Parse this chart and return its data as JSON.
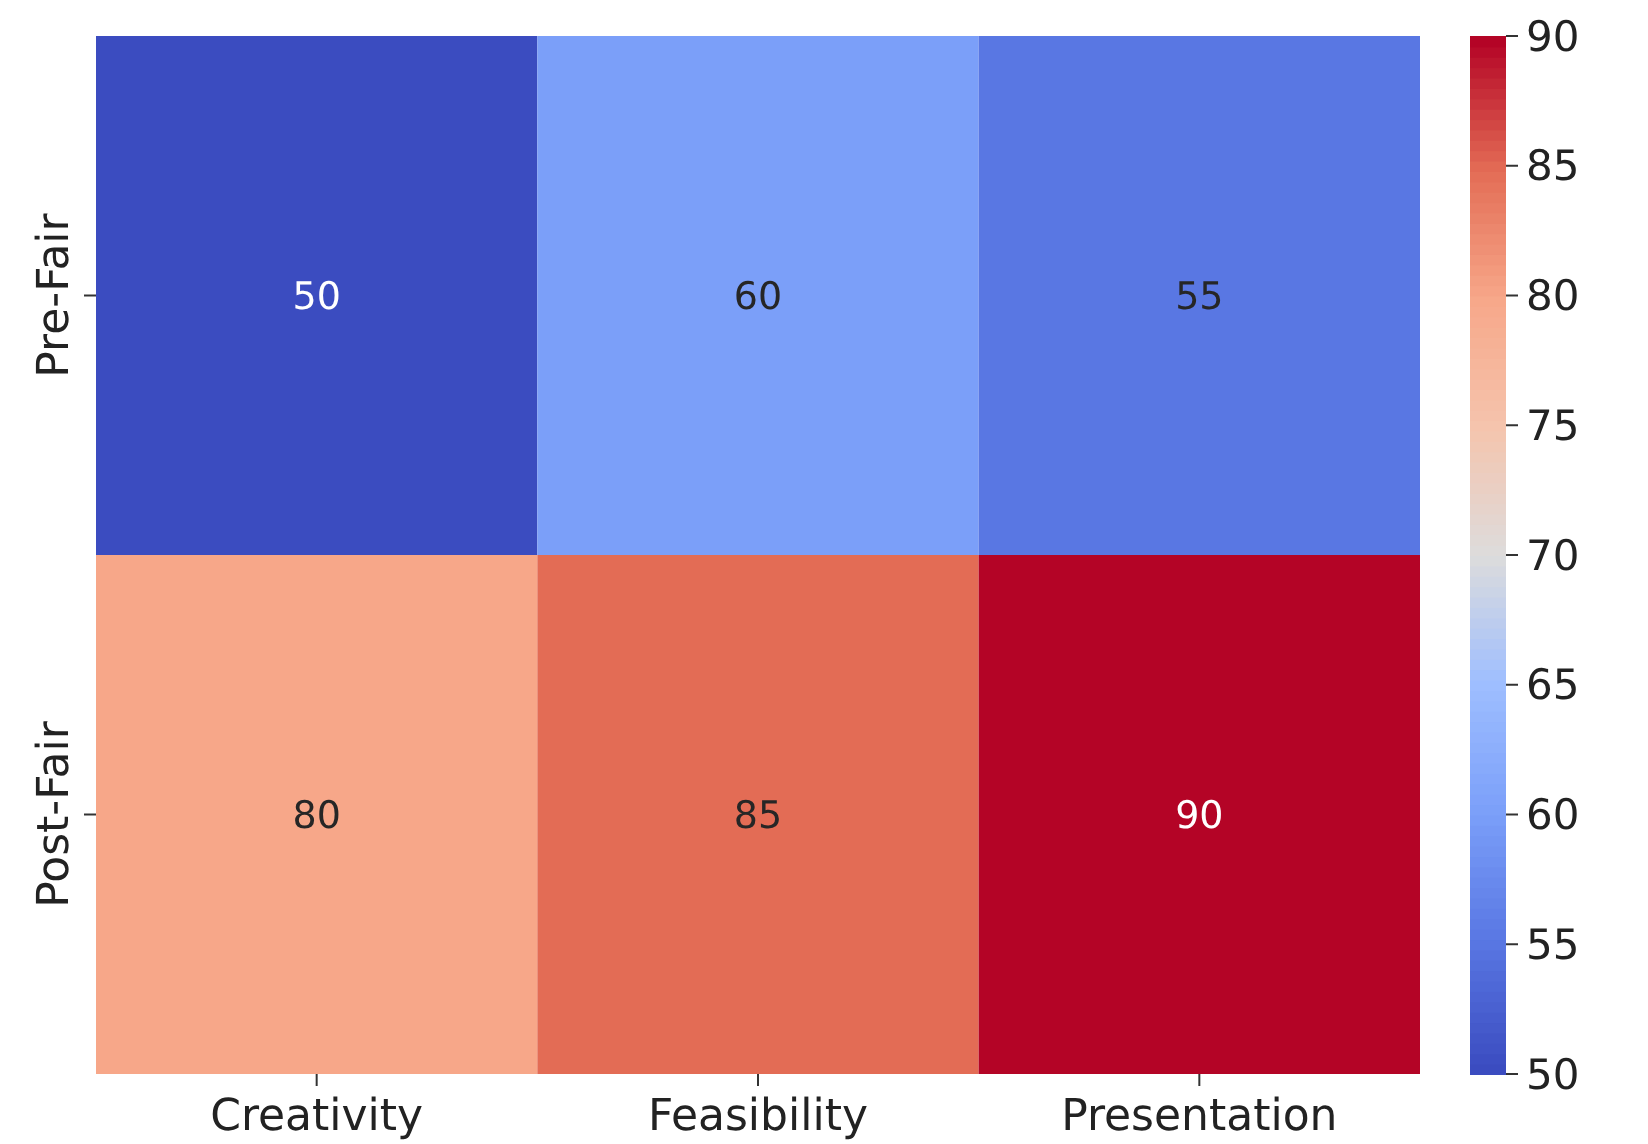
{
  "chart_data": {
    "type": "heatmap",
    "categories": [
      "Creativity",
      "Feasibility",
      "Presentation"
    ],
    "y_categories": [
      "Pre-Fair",
      "Post-Fair"
    ],
    "cells": [
      [
        50,
        60,
        55
      ],
      [
        80,
        85,
        90
      ]
    ],
    "data_labels": true,
    "clim": [
      50,
      90
    ],
    "cticks": [
      50,
      55,
      60,
      65,
      70,
      75,
      80,
      85,
      90
    ]
  }
}
